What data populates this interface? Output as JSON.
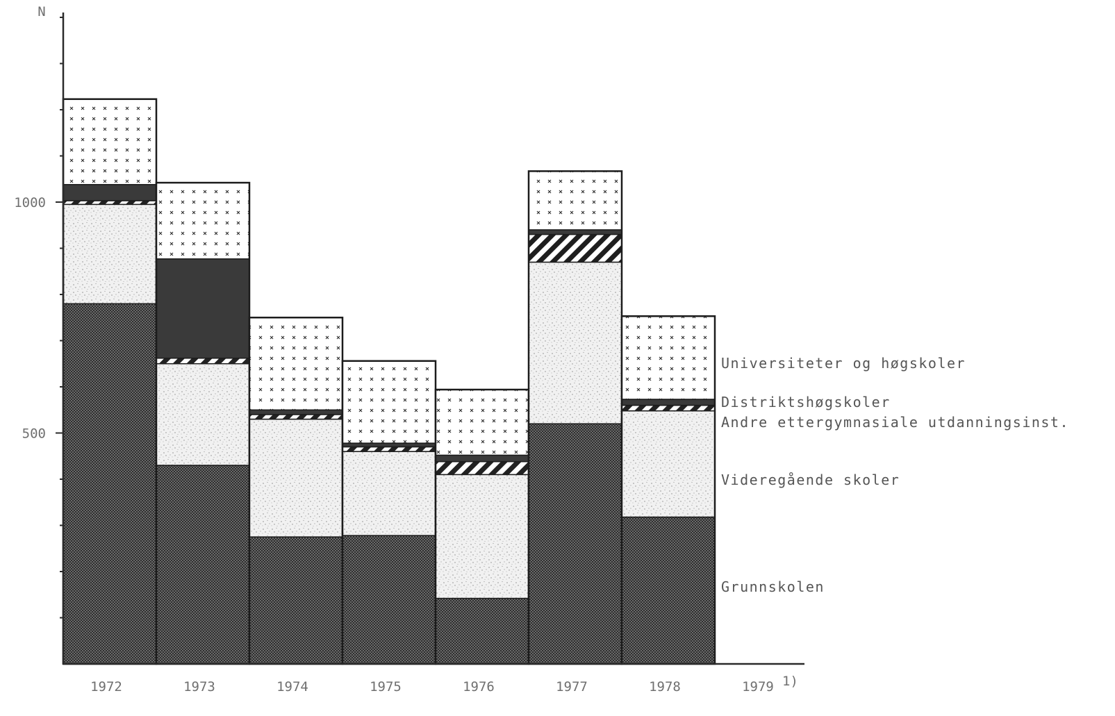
{
  "chart_data": {
    "type": "bar",
    "stacked": true,
    "ylabel": "N",
    "ylim": [
      0,
      1400
    ],
    "yticks": [
      500,
      1000
    ],
    "categories": [
      "1972",
      "1973",
      "1974",
      "1975",
      "1976",
      "1977",
      "1978",
      "1979"
    ],
    "category_footnote": "1)",
    "series": [
      {
        "name": "Grunnskolen",
        "pattern": "dense-dark",
        "values": [
          780,
          430,
          275,
          278,
          142,
          520,
          318,
          null
        ]
      },
      {
        "name": "Videregående skoler",
        "pattern": "light-stipple",
        "values": [
          215,
          220,
          255,
          182,
          268,
          350,
          230,
          null
        ]
      },
      {
        "name": "Andre ettergymnasiale utdanningsinst.",
        "pattern": "white-dash",
        "values": [
          8,
          12,
          10,
          10,
          28,
          60,
          12,
          null
        ]
      },
      {
        "name": "Distriktshøgskoler",
        "pattern": "solid-dark",
        "values": [
          35,
          215,
          10,
          8,
          14,
          10,
          13,
          null
        ]
      },
      {
        "name": "Universiteter og høgskoler",
        "pattern": "crosses",
        "values": [
          185,
          165,
          200,
          178,
          142,
          127,
          180,
          null
        ]
      }
    ],
    "colors": {
      "stroke": "#1c1c1c",
      "dark_fill": "#3a3a3a",
      "stipple_bg": "#f1f1f1"
    }
  }
}
